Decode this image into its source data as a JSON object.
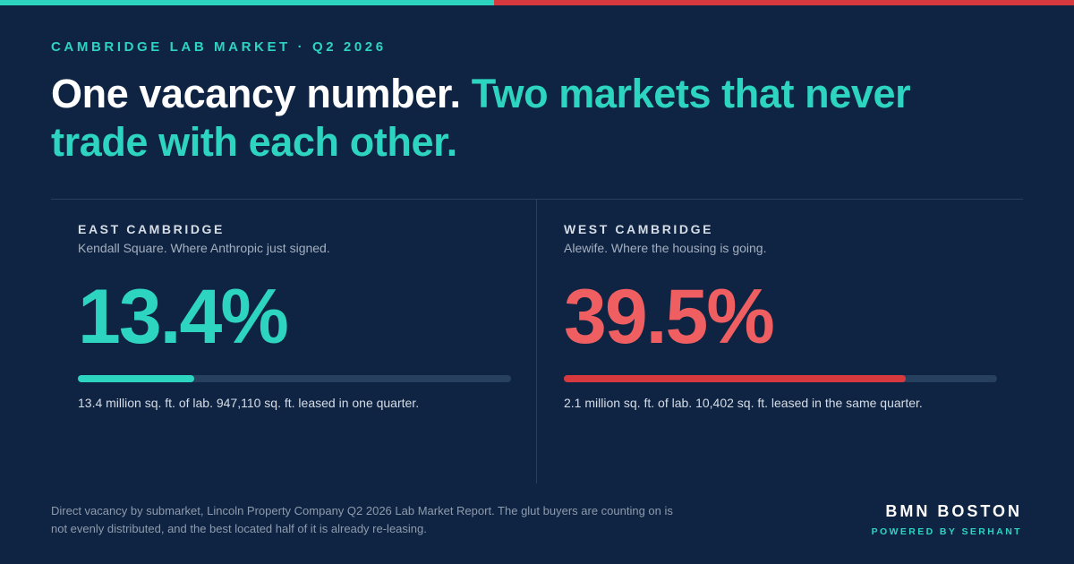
{
  "colors": {
    "background": "#0f2442",
    "accent_teal": "#2dd4bf",
    "accent_red": "#d63a3f",
    "value_red": "#ef5f62"
  },
  "eyebrow": "CAMBRIDGE LAB MARKET · Q2 2026",
  "headline": {
    "part1": "One vacancy number.",
    "part2": "Two markets that never trade with each other."
  },
  "east": {
    "title": "EAST CAMBRIDGE",
    "subtitle": "Kendall Square. Where Anthropic just signed.",
    "value": "13.4%",
    "vacancy_fraction": 0.134,
    "detail": "13.4 million sq. ft. of lab. 947,110 sq. ft. leased in one quarter."
  },
  "west": {
    "title": "WEST CAMBRIDGE",
    "subtitle": "Alewife. Where the housing is going.",
    "value": "39.5%",
    "vacancy_fraction": 0.395,
    "detail": "2.1 million sq. ft. of lab. 10,402 sq. ft. leased in the same quarter."
  },
  "footnote": "Direct vacancy by submarket, Lincoln Property Company Q2 2026 Lab Market Report. The glut buyers are counting on is not evenly distributed, and the best located half of it is already re-leasing.",
  "brand": {
    "name": "BMN BOSTON",
    "tagline": "POWERED BY SERHANT"
  }
}
